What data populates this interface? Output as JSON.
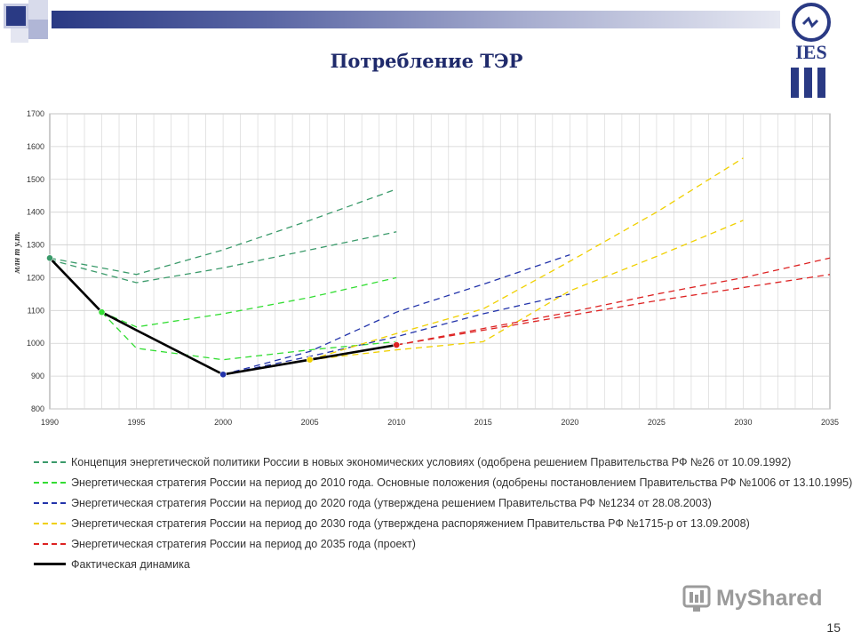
{
  "slide": {
    "title": "Потребление ТЭР",
    "page_number": "15",
    "logo_text": "IES",
    "watermark": "MyShared"
  },
  "colors": {
    "header_dark": "#2a3a84",
    "header_light": "#e6e8f2",
    "title": "#1f2a6b"
  },
  "chart_data": {
    "type": "line",
    "title": "",
    "xlabel": "",
    "ylabel": "млн т у.т.",
    "xlim": [
      1990,
      2035
    ],
    "ylim": [
      800,
      1700
    ],
    "xticks": [
      1990,
      1995,
      2000,
      2005,
      2010,
      2015,
      2020,
      2025,
      2030,
      2035
    ],
    "yticks": [
      800,
      900,
      1000,
      1100,
      1200,
      1300,
      1400,
      1500,
      1600,
      1700
    ],
    "grid": true,
    "legend_position": "below",
    "series": [
      {
        "name": "Концепция энергетической политики России в новых экономических условиях (одобрена решением Правительства РФ №26 от 10.09.1992)",
        "color": "#3a9a6a",
        "style": "dashed",
        "lines": [
          [
            [
              1990,
              1260
            ],
            [
              1995,
              1210
            ],
            [
              2000,
              1285
            ],
            [
              2005,
              1375
            ],
            [
              2010,
              1470
            ]
          ],
          [
            [
              1990,
              1255
            ],
            [
              1995,
              1185
            ],
            [
              2000,
              1230
            ],
            [
              2005,
              1285
            ],
            [
              2010,
              1340
            ]
          ]
        ]
      },
      {
        "name": "Энергетическая стратегия России на период до 2010 года. Основные положения (одобрены постановлением Правительства РФ №1006 от 13.10.1995)",
        "color": "#33dd33",
        "style": "dashed",
        "lines": [
          [
            [
              1993,
              1095
            ],
            [
              1995,
              1050
            ],
            [
              2000,
              1090
            ],
            [
              2005,
              1140
            ],
            [
              2010,
              1200
            ]
          ],
          [
            [
              1993,
              1095
            ],
            [
              1995,
              985
            ],
            [
              2000,
              950
            ],
            [
              2005,
              980
            ],
            [
              2010,
              1005
            ]
          ]
        ]
      },
      {
        "name": "Энергетическая стратегия России на период до 2020 года (утверждена решением Правительства РФ №1234 от 28.08.2003)",
        "color": "#2233aa",
        "style": "dashed",
        "lines": [
          [
            [
              2000,
              905
            ],
            [
              2005,
              975
            ],
            [
              2010,
              1095
            ],
            [
              2015,
              1180
            ],
            [
              2020,
              1270
            ]
          ],
          [
            [
              2000,
              905
            ],
            [
              2005,
              960
            ],
            [
              2010,
              1020
            ],
            [
              2015,
              1090
            ],
            [
              2020,
              1150
            ]
          ]
        ]
      },
      {
        "name": "Энергетическая стратегия России на период до 2030 года (утверждена распоряжением Правительства РФ №1715-р от 13.09.2008)",
        "color": "#f0d000",
        "style": "dashed",
        "lines": [
          [
            [
              2005,
              950
            ],
            [
              2010,
              1030
            ],
            [
              2015,
              1105
            ],
            [
              2020,
              1250
            ],
            [
              2025,
              1400
            ],
            [
              2030,
              1565
            ]
          ],
          [
            [
              2005,
              950
            ],
            [
              2010,
              980
            ],
            [
              2015,
              1005
            ],
            [
              2020,
              1160
            ],
            [
              2025,
              1265
            ],
            [
              2030,
              1375
            ]
          ]
        ]
      },
      {
        "name": "Энергетическая стратегия России на период до 2035 года (проект)",
        "color": "#dd2222",
        "style": "dashed",
        "lines": [
          [
            [
              2010,
              995
            ],
            [
              2015,
              1045
            ],
            [
              2020,
              1095
            ],
            [
              2025,
              1150
            ],
            [
              2030,
              1200
            ],
            [
              2035,
              1260
            ]
          ],
          [
            [
              2010,
              995
            ],
            [
              2015,
              1040
            ],
            [
              2020,
              1085
            ],
            [
              2025,
              1130
            ],
            [
              2030,
              1170
            ],
            [
              2035,
              1210
            ]
          ]
        ]
      },
      {
        "name": "Фактическая динамика",
        "color": "#000000",
        "style": "solid",
        "lines": [
          [
            [
              1990,
              1260
            ],
            [
              1993,
              1095
            ],
            [
              1995,
              1040
            ],
            [
              2000,
              905
            ],
            [
              2005,
              950
            ],
            [
              2010,
              995
            ]
          ]
        ]
      }
    ],
    "markers": [
      {
        "x": 1990,
        "y": 1260,
        "color": "#3a9a6a"
      },
      {
        "x": 1993,
        "y": 1095,
        "color": "#33dd33"
      },
      {
        "x": 2000,
        "y": 905,
        "color": "#2233aa"
      },
      {
        "x": 2005,
        "y": 950,
        "color": "#f0d000"
      },
      {
        "x": 2010,
        "y": 995,
        "color": "#dd2222"
      }
    ]
  }
}
